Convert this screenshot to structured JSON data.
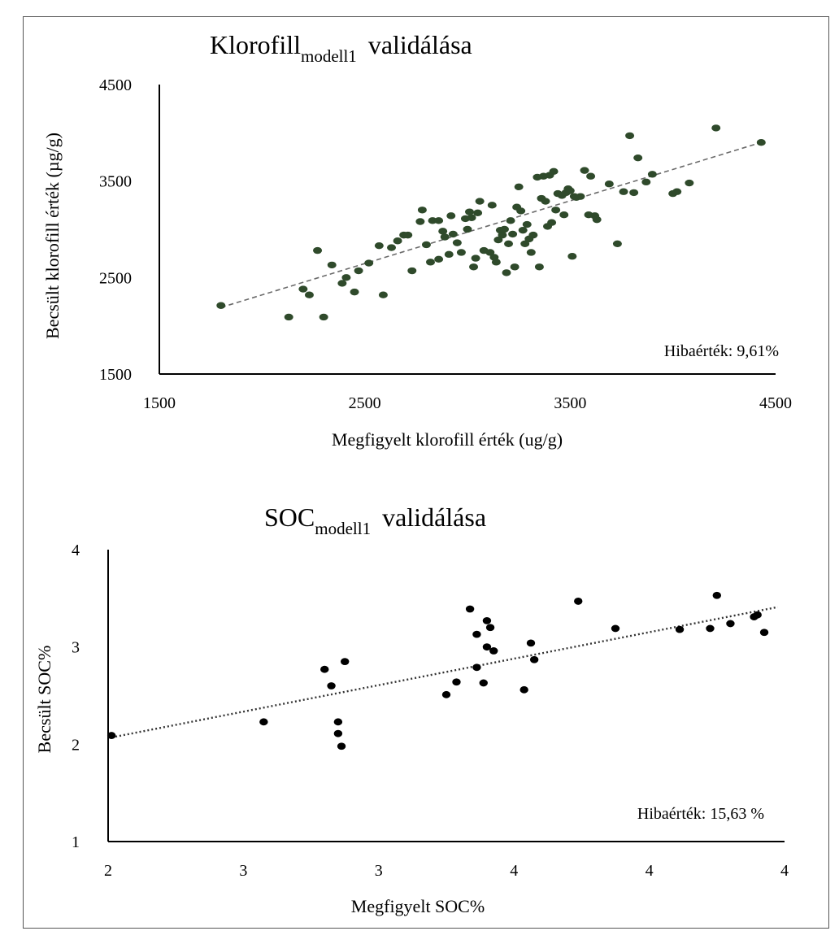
{
  "colors": {
    "point1": "#2f4a2b",
    "point2": "#000000",
    "trend1": "#6b6b6b",
    "trend2": "#333333"
  },
  "chart_data": [
    {
      "type": "scatter",
      "title_main": "Klorofill",
      "title_sub": "modell1",
      "title_rest": "validálása",
      "xlabel": "Megfigyelt klorofill érték (ug/g)",
      "ylabel": "Becsült klorofill érték (µg/g)",
      "xlim": [
        1500,
        4500
      ],
      "ylim": [
        1500,
        4500
      ],
      "xticks": [
        "1500",
        "2500",
        "3500",
        "4500"
      ],
      "yticks": [
        "1500",
        "2500",
        "3500",
        "4500"
      ],
      "annotation": "Hibaérték: 9,61%",
      "trend": {
        "x": [
          1800,
          4430
        ],
        "y": [
          2190,
          3900
        ]
      },
      "points": [
        [
          1800,
          2210
        ],
        [
          2130,
          2090
        ],
        [
          2200,
          2380
        ],
        [
          2230,
          2320
        ],
        [
          2270,
          2780
        ],
        [
          2300,
          2090
        ],
        [
          2340,
          2630
        ],
        [
          2390,
          2440
        ],
        [
          2410,
          2500
        ],
        [
          2450,
          2350
        ],
        [
          2470,
          2570
        ],
        [
          2520,
          2650
        ],
        [
          2570,
          2830
        ],
        [
          2590,
          2320
        ],
        [
          2630,
          2810
        ],
        [
          2660,
          2880
        ],
        [
          2690,
          2940
        ],
        [
          2710,
          2940
        ],
        [
          2730,
          2570
        ],
        [
          2770,
          3080
        ],
        [
          2780,
          3200
        ],
        [
          2800,
          2840
        ],
        [
          2820,
          2660
        ],
        [
          2830,
          3090
        ],
        [
          2860,
          3090
        ],
        [
          2860,
          2690
        ],
        [
          2880,
          2980
        ],
        [
          2890,
          2920
        ],
        [
          2910,
          2740
        ],
        [
          2920,
          3140
        ],
        [
          2930,
          2950
        ],
        [
          2950,
          2860
        ],
        [
          2970,
          2760
        ],
        [
          2990,
          3110
        ],
        [
          3000,
          3000
        ],
        [
          3010,
          3180
        ],
        [
          3020,
          3120
        ],
        [
          3030,
          2610
        ],
        [
          3040,
          2700
        ],
        [
          3050,
          3170
        ],
        [
          3060,
          3290
        ],
        [
          3080,
          2780
        ],
        [
          3110,
          2760
        ],
        [
          3120,
          3250
        ],
        [
          3130,
          2710
        ],
        [
          3140,
          2660
        ],
        [
          3150,
          2890
        ],
        [
          3160,
          2990
        ],
        [
          3170,
          2940
        ],
        [
          3180,
          3000
        ],
        [
          3190,
          2550
        ],
        [
          3200,
          2850
        ],
        [
          3210,
          3090
        ],
        [
          3220,
          2950
        ],
        [
          3230,
          2610
        ],
        [
          3240,
          3230
        ],
        [
          3250,
          3440
        ],
        [
          3260,
          3190
        ],
        [
          3270,
          2990
        ],
        [
          3280,
          2850
        ],
        [
          3290,
          3050
        ],
        [
          3300,
          2900
        ],
        [
          3310,
          2760
        ],
        [
          3320,
          2940
        ],
        [
          3340,
          3540
        ],
        [
          3350,
          2610
        ],
        [
          3360,
          3320
        ],
        [
          3370,
          3550
        ],
        [
          3380,
          3290
        ],
        [
          3390,
          3030
        ],
        [
          3400,
          3560
        ],
        [
          3410,
          3070
        ],
        [
          3420,
          3600
        ],
        [
          3430,
          3200
        ],
        [
          3440,
          3370
        ],
        [
          3460,
          3350
        ],
        [
          3470,
          3150
        ],
        [
          3480,
          3380
        ],
        [
          3490,
          3420
        ],
        [
          3500,
          3400
        ],
        [
          3510,
          2720
        ],
        [
          3520,
          3340
        ],
        [
          3530,
          3330
        ],
        [
          3550,
          3340
        ],
        [
          3570,
          3610
        ],
        [
          3590,
          3150
        ],
        [
          3600,
          3550
        ],
        [
          3620,
          3140
        ],
        [
          3630,
          3100
        ],
        [
          3690,
          3470
        ],
        [
          3730,
          2850
        ],
        [
          3760,
          3390
        ],
        [
          3790,
          3970
        ],
        [
          3810,
          3380
        ],
        [
          3830,
          3740
        ],
        [
          3870,
          3490
        ],
        [
          3900,
          3570
        ],
        [
          4000,
          3370
        ],
        [
          4020,
          3390
        ],
        [
          4080,
          3480
        ],
        [
          4210,
          4050
        ],
        [
          4430,
          3900
        ]
      ]
    },
    {
      "type": "scatter",
      "title_main": "SOC",
      "title_sub": "modell1",
      "title_rest": "validálása",
      "xlabel": "Megfigyelt SOC%",
      "ylabel": "Becsült SOC%",
      "xlim": [
        2,
        4
      ],
      "ylim": [
        1,
        4
      ],
      "xticks": [
        "2",
        "3",
        "3",
        "4",
        "4",
        "4"
      ],
      "yticks": [
        "1",
        "2",
        "3",
        "4"
      ],
      "annotation": "Hibaérték: 15,63 %",
      "trend": {
        "x": [
          2.01,
          3.98
        ],
        "y": [
          2.07,
          3.41
        ]
      },
      "points": [
        [
          2.01,
          2.09
        ],
        [
          2.46,
          2.23
        ],
        [
          2.64,
          2.77
        ],
        [
          2.66,
          2.6
        ],
        [
          2.68,
          2.23
        ],
        [
          2.68,
          2.11
        ],
        [
          2.69,
          1.98
        ],
        [
          2.7,
          2.85
        ],
        [
          3.0,
          2.51
        ],
        [
          3.03,
          2.64
        ],
        [
          3.07,
          3.39
        ],
        [
          3.09,
          3.13
        ],
        [
          3.09,
          2.79
        ],
        [
          3.11,
          2.63
        ],
        [
          3.12,
          3.27
        ],
        [
          3.12,
          3.0
        ],
        [
          3.13,
          3.2
        ],
        [
          3.14,
          2.96
        ],
        [
          3.23,
          2.56
        ],
        [
          3.25,
          3.04
        ],
        [
          3.26,
          2.87
        ],
        [
          3.39,
          3.47
        ],
        [
          3.5,
          3.19
        ],
        [
          3.69,
          3.18
        ],
        [
          3.78,
          3.19
        ],
        [
          3.8,
          3.53
        ],
        [
          3.84,
          3.24
        ],
        [
          3.91,
          3.31
        ],
        [
          3.92,
          3.33
        ],
        [
          3.94,
          3.15
        ]
      ]
    }
  ]
}
